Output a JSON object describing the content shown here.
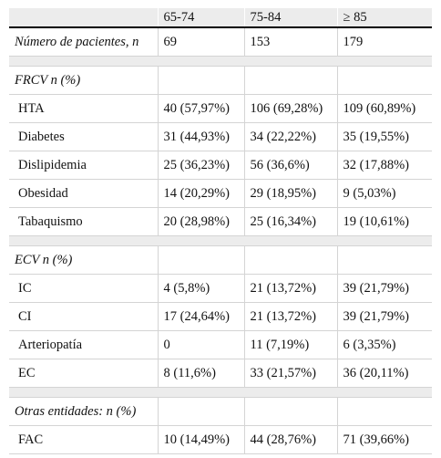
{
  "table": {
    "headers": [
      "",
      "65-74",
      "75-84",
      "≥ 85"
    ],
    "patients": {
      "label": "Número de pacientes, n",
      "values": [
        "69",
        "153",
        "179"
      ]
    },
    "sections": [
      {
        "title": "FRCV n (%)",
        "rows": [
          {
            "label": "HTA",
            "values": [
              "40 (57,97%)",
              "106 (69,28%)",
              "109 (60,89%)"
            ]
          },
          {
            "label": "Diabetes",
            "values": [
              "31 (44,93%)",
              "34 (22,22%)",
              "35 (19,55%)"
            ]
          },
          {
            "label": "Dislipidemia",
            "values": [
              "25 (36,23%)",
              "56 (36,6%)",
              "32 (17,88%)"
            ]
          },
          {
            "label": "Obesidad",
            "values": [
              "14 (20,29%)",
              "29 (18,95%)",
              "9 (5,03%)"
            ]
          },
          {
            "label": "Tabaquismo",
            "values": [
              "20 (28,98%)",
              "25 (16,34%)",
              "19 (10,61%)"
            ]
          }
        ]
      },
      {
        "title": "ECV n (%)",
        "rows": [
          {
            "label": "IC",
            "values": [
              "4 (5,8%)",
              "21 (13,72%)",
              "39 (21,79%)"
            ]
          },
          {
            "label": "CI",
            "values": [
              "17 (24,64%)",
              "21 (13,72%)",
              "39 (21,79%)"
            ]
          },
          {
            "label": "Arteriopatía",
            "values": [
              "0",
              "11 (7,19%)",
              "6 (3,35%)"
            ]
          },
          {
            "label": "EC",
            "values": [
              "8 (11,6%)",
              "33 (21,57%)",
              "36 (20,11%)"
            ]
          }
        ]
      },
      {
        "title": "Otras entidades: n (%)",
        "rows": [
          {
            "label": "FAC",
            "values": [
              "10 (14,49%)",
              "44 (28,76%)",
              "71 (39,66%)"
            ]
          }
        ]
      }
    ]
  }
}
